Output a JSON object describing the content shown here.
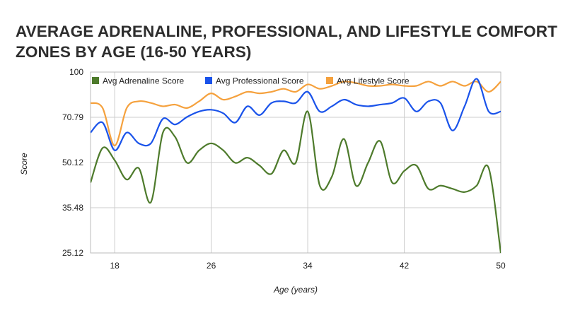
{
  "page": {
    "title": "AVERAGE ADRENALINE, PROFESSIONAL, AND LIFESTYLE COMFORT ZONES BY AGE (16-50 YEARS)"
  },
  "chart_data": {
    "type": "line",
    "title": "AVERAGE ADRENALINE, PROFESSIONAL, AND LIFESTYLE COMFORT ZONES BY AGE (16-50 YEARS)",
    "xlabel": "Age (years)",
    "ylabel": "Score",
    "xlim": [
      16,
      50
    ],
    "ylim": [
      25.12,
      100
    ],
    "x_ticks": [
      18,
      26,
      34,
      42,
      50
    ],
    "y_ticks": [
      25.12,
      35.48,
      50.12,
      70.79,
      100
    ],
    "y_tick_labels": [
      "25.12",
      "35.48",
      "50.12",
      "70.79",
      "100"
    ],
    "log_scale_y": true,
    "grid": true,
    "legend_position": "top",
    "x": [
      16,
      17,
      18,
      19,
      20,
      21,
      22,
      23,
      24,
      25,
      26,
      27,
      28,
      29,
      30,
      31,
      32,
      33,
      34,
      35,
      36,
      37,
      38,
      39,
      40,
      41,
      42,
      43,
      44,
      45,
      46,
      47,
      48,
      49,
      50
    ],
    "series": [
      {
        "name": "Avg Adrenaline Score",
        "color": "#4e7b2c",
        "values": [
          43,
          56,
          51,
          44,
          48,
          37,
          63,
          61,
          50,
          55,
          58,
          55,
          50,
          52,
          49,
          46,
          55,
          50,
          74,
          42,
          45,
          60,
          42,
          50,
          59,
          43,
          47,
          49,
          41,
          42,
          41,
          40,
          42,
          48,
          25.12
        ]
      },
      {
        "name": "Avg Professional Score",
        "color": "#1a53ea",
        "values": [
          63,
          68,
          55,
          63,
          58,
          58,
          70,
          67,
          71,
          74,
          75,
          73,
          68,
          77,
          72,
          79,
          80,
          79,
          86,
          74,
          77,
          81,
          78,
          77,
          78,
          79,
          82,
          74,
          80,
          79,
          64,
          77,
          95,
          74,
          74
        ]
      },
      {
        "name": "Avg Lifestyle Score",
        "color": "#f5a13d",
        "values": [
          79,
          76,
          57,
          76,
          80,
          79,
          77,
          78,
          76,
          80,
          85,
          81,
          83,
          86,
          85,
          86,
          88,
          86,
          91,
          88,
          90,
          93,
          92,
          90,
          90,
          91,
          90,
          90,
          93,
          90,
          93,
          90,
          93,
          86,
          93
        ]
      }
    ]
  }
}
